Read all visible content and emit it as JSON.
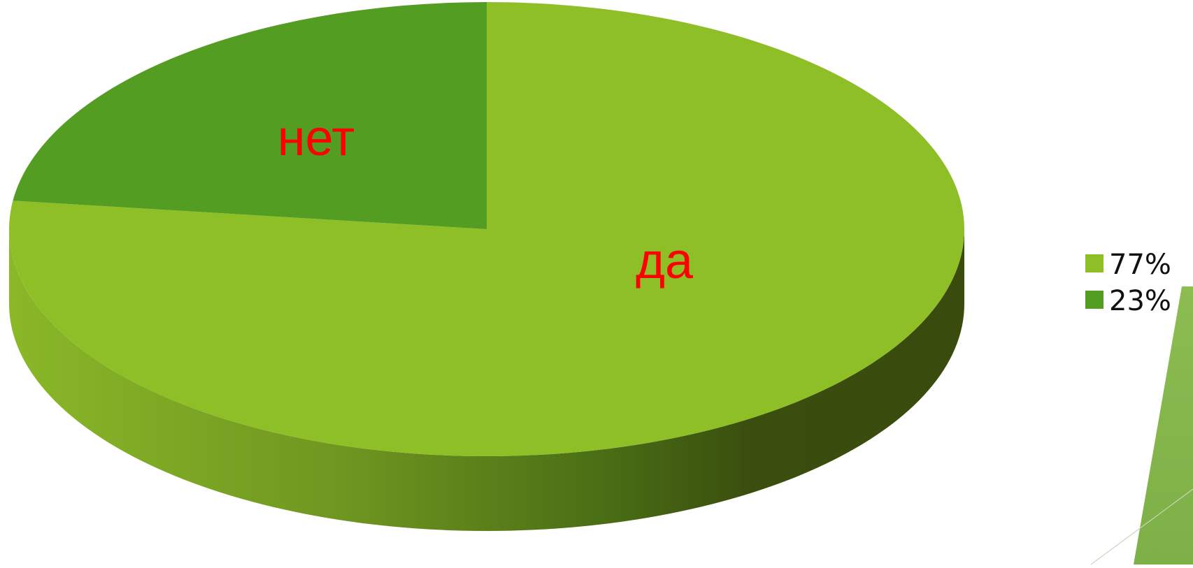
{
  "chart_data": {
    "type": "pie",
    "style": "3d",
    "categories": [
      "да",
      "нет"
    ],
    "values": [
      77,
      23
    ],
    "unit": "%",
    "colors": [
      "#8fbf27",
      "#549d23"
    ],
    "slice_labels": [
      "да",
      "нет"
    ],
    "slice_label_color": "#ff0000",
    "legend": {
      "position": "right",
      "entries": [
        "77%",
        "23%"
      ]
    },
    "title": ""
  },
  "decoration": {
    "shape_color": "#7fb648"
  }
}
